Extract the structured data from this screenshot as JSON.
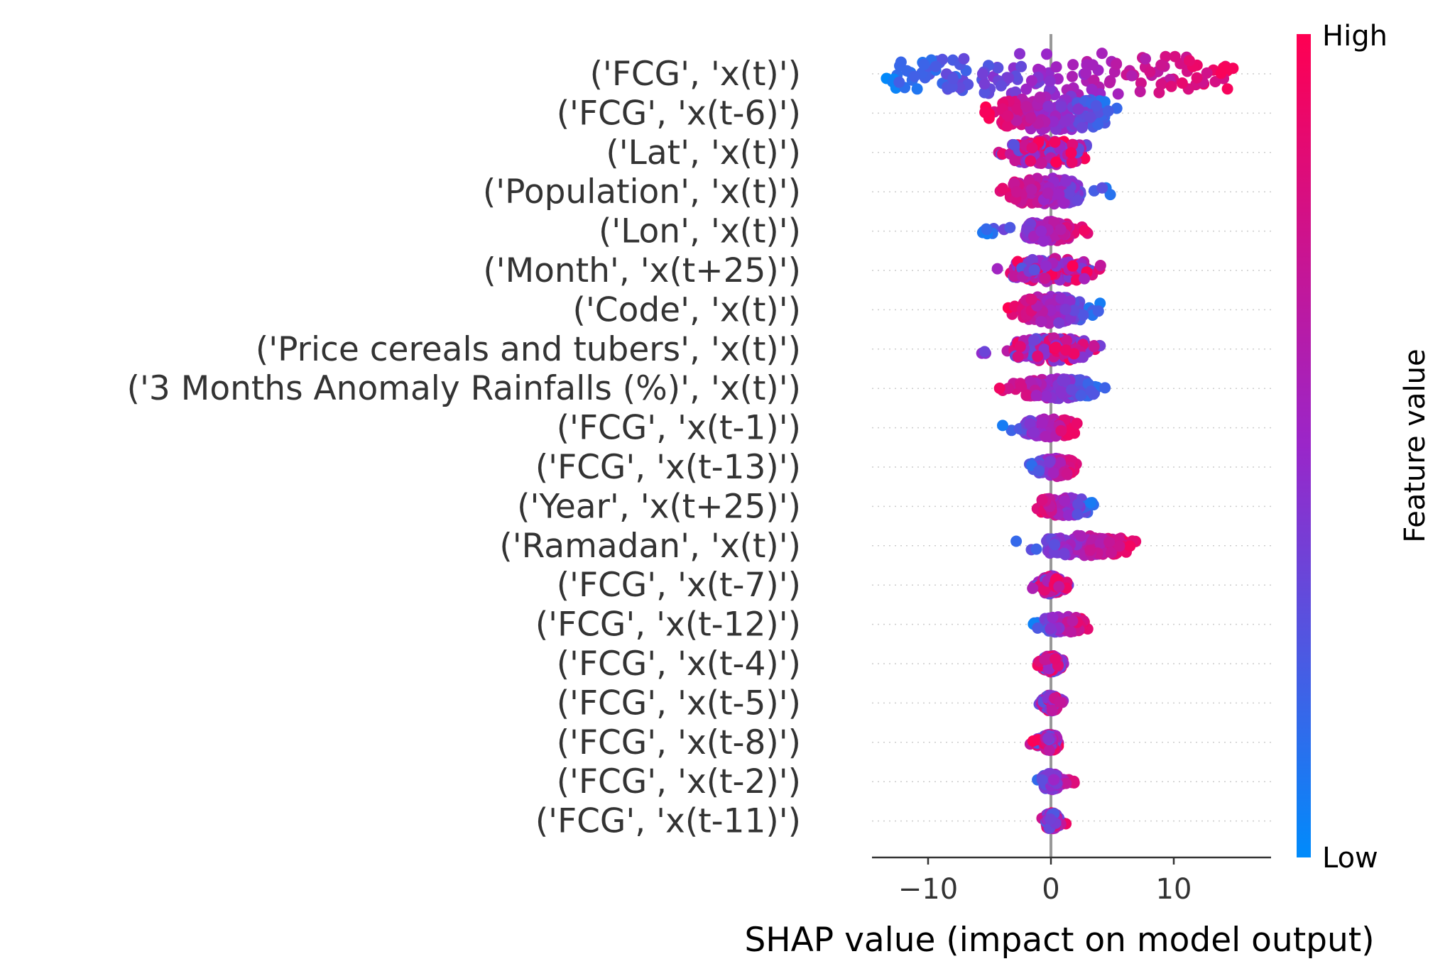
{
  "chart_data": {
    "type": "scatter",
    "subtype": "beeswarm",
    "title": "",
    "xlabel": "SHAP value (impact on model output)",
    "ylabel": "",
    "xlim": [
      -14.5,
      18.5
    ],
    "xticks": [
      {
        "value": -10,
        "label": "−10"
      },
      {
        "value": 0,
        "label": "0"
      },
      {
        "value": 10,
        "label": "10"
      }
    ],
    "grid": false,
    "colorbar": {
      "label": "Feature value",
      "high_label": "High",
      "low_label": "Low",
      "low_color": "#008bfb",
      "high_color": "#ff0052"
    },
    "features": [
      {
        "name": "('FCG', 'x(t)')",
        "min": -13.5,
        "max": 16.5,
        "color_trend": "increasing",
        "main_min": -13.0,
        "main_max": 15.5,
        "width": 1.0
      },
      {
        "name": "('FCG', 'x(t-6)')",
        "min": -5.5,
        "max": 5.5,
        "color_trend": "decreasing",
        "main_min": -4.0,
        "main_max": 4.5,
        "width": 0.8
      },
      {
        "name": "('Lat', 'x(t)')",
        "min": -5.0,
        "max": 3.0,
        "color_trend": "mixed",
        "main_min": -3.0,
        "main_max": 2.5,
        "width": 0.55
      },
      {
        "name": "('Population', 'x(t)')",
        "min": -5.0,
        "max": 5.5,
        "color_trend": "decreasing",
        "main_min": -3.0,
        "main_max": 2.5,
        "width": 0.6
      },
      {
        "name": "('Lon', 'x(t)')",
        "min": -5.8,
        "max": 3.5,
        "color_trend": "increasing",
        "main_min": -2.0,
        "main_max": 1.5,
        "width": 0.4
      },
      {
        "name": "('Month', 'x(t+25)')",
        "min": -4.5,
        "max": 4.5,
        "color_trend": "mixed",
        "main_min": -3.0,
        "main_max": 3.0,
        "width": 0.5
      },
      {
        "name": "('Code', 'x(t)')",
        "min": -3.5,
        "max": 4.0,
        "color_trend": "decreasing",
        "main_min": -2.5,
        "main_max": 2.5,
        "width": 0.6
      },
      {
        "name": "('Price cereals and tubers', 'x(t)')",
        "min": -5.8,
        "max": 5.2,
        "color_trend": "mixed",
        "main_min": -3.0,
        "main_max": 3.0,
        "width": 0.5
      },
      {
        "name": "('3 Months Anomaly Rainfalls (%)', 'x(t)')",
        "min": -4.5,
        "max": 4.5,
        "color_trend": "decreasing",
        "main_min": -2.0,
        "main_max": 3.5,
        "width": 0.4
      },
      {
        "name": "('FCG', 'x(t-1)')",
        "min": -4.0,
        "max": 2.2,
        "color_trend": "increasing",
        "main_min": -2.0,
        "main_max": 1.8,
        "width": 0.35
      },
      {
        "name": "('FCG', 'x(t-13)')",
        "min": -2.2,
        "max": 2.3,
        "color_trend": "increasing",
        "main_min": -1.0,
        "main_max": 1.8,
        "width": 0.35
      },
      {
        "name": "('Year', 'x(t+25)')",
        "min": -1.2,
        "max": 3.5,
        "color_trend": "decreasing",
        "main_min": -0.8,
        "main_max": 3.0,
        "width": 0.35
      },
      {
        "name": "('Ramadan', 'x(t)')",
        "min": -3.2,
        "max": 7.0,
        "color_trend": "increasing",
        "main_min": -0.5,
        "main_max": 6.0,
        "width": 0.4
      },
      {
        "name": "('FCG', 'x(t-7)')",
        "min": -1.5,
        "max": 1.5,
        "color_trend": "mixed",
        "main_min": -0.7,
        "main_max": 0.7,
        "width": 0.35
      },
      {
        "name": "('FCG', 'x(t-12)')",
        "min": -1.5,
        "max": 3.0,
        "color_trend": "increasing",
        "main_min": -0.5,
        "main_max": 2.5,
        "width": 0.3
      },
      {
        "name": "('FCG', 'x(t-4)')",
        "min": -1.2,
        "max": 1.2,
        "color_trend": "mixed",
        "main_min": -0.6,
        "main_max": 0.6,
        "width": 0.3
      },
      {
        "name": "('FCG', 'x(t-5)')",
        "min": -1.0,
        "max": 1.0,
        "color_trend": "mixed",
        "main_min": -0.5,
        "main_max": 0.5,
        "width": 0.3
      },
      {
        "name": "('FCG', 'x(t-8)')",
        "min": -1.8,
        "max": 0.8,
        "color_trend": "mixed",
        "main_min": -0.6,
        "main_max": 0.5,
        "width": 0.3
      },
      {
        "name": "('FCG', 'x(t-2)')",
        "min": -1.5,
        "max": 2.8,
        "color_trend": "increasing",
        "main_min": -0.6,
        "main_max": 0.6,
        "width": 0.3
      },
      {
        "name": "('FCG', 'x(t-11)')",
        "min": -0.8,
        "max": 1.5,
        "color_trend": "mixed",
        "main_min": -0.4,
        "main_max": 0.5,
        "width": 0.3
      }
    ]
  }
}
